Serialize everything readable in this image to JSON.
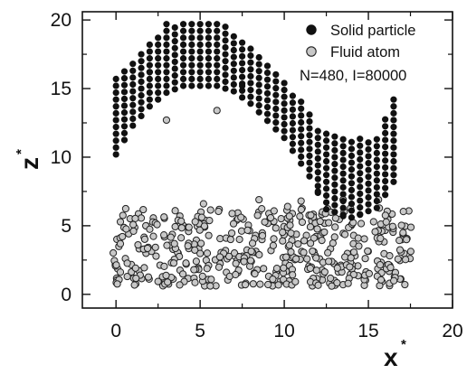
{
  "chart_data": {
    "type": "scatter",
    "xlabel": "x",
    "xlabel_sup": "*",
    "ylabel": "z",
    "ylabel_sup": "*",
    "xlim": [
      -2,
      20
    ],
    "ylim": [
      -1,
      20.6
    ],
    "xticks": [
      0,
      5,
      10,
      15,
      20
    ],
    "yticks": [
      0,
      5,
      10,
      15,
      20
    ],
    "grid": false,
    "legend_position": "top-right",
    "annotation": "N=480, I=80000",
    "series": [
      {
        "name": "Solid particle",
        "color": "#111111",
        "marker": "filled-circle",
        "shape": {
          "x_start": 0,
          "x_end": 16.5,
          "x_spacing": 0.5,
          "z_spacing": 0.5,
          "upper_profile": [
            [
              0,
              15.8
            ],
            [
              3,
              19.8
            ],
            [
              6.5,
              19.8
            ],
            [
              8,
              18.2
            ],
            [
              9.5,
              16.2
            ],
            [
              11.5,
              13.5
            ],
            [
              12,
              12.2
            ],
            [
              14,
              11.4
            ],
            [
              15.5,
              11.6
            ],
            [
              16.5,
              14.2
            ]
          ],
          "lower_profile": [
            [
              0,
              10.2
            ],
            [
              1,
              12.3
            ],
            [
              2,
              13.7
            ],
            [
              3,
              14.7
            ],
            [
              4,
              15.2
            ],
            [
              6,
              15.2
            ],
            [
              7,
              14.8
            ],
            [
              8,
              13.9
            ],
            [
              10,
              11.4
            ],
            [
              11.5,
              8.6
            ],
            [
              12.5,
              6.2
            ],
            [
              14,
              5.6
            ],
            [
              15.5,
              6.3
            ],
            [
              16.5,
              8.2
            ]
          ]
        },
        "extra_points": [
          [
            2,
            16.2
          ],
          [
            7.5,
            15.2
          ],
          [
            12,
            7.5
          ],
          [
            13.5,
            5.7
          ],
          [
            14.5,
            5.8
          ]
        ]
      },
      {
        "name": "Fluid atom",
        "color": "#c8c8c8",
        "edge_color": "#222222",
        "marker": "open-circle",
        "count": 480,
        "region": {
          "x": [
            -0.2,
            17.6
          ],
          "z": [
            0.6,
            6.9
          ]
        },
        "outliers": [
          [
            3,
            12.7
          ],
          [
            6,
            13.4
          ],
          [
            5.2,
            6.6
          ],
          [
            8.5,
            6.9
          ],
          [
            10.2,
            6.4
          ],
          [
            11,
            6.8
          ],
          [
            13.5,
            6.9
          ],
          [
            15.6,
            6.9
          ]
        ]
      }
    ]
  }
}
